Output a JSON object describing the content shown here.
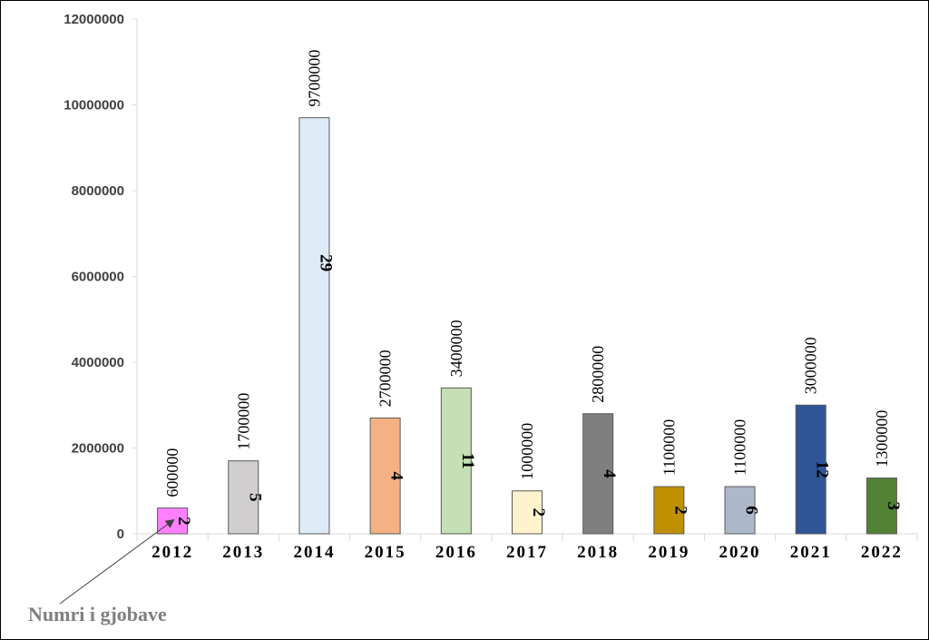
{
  "chart_data": {
    "type": "bar",
    "categories": [
      "2012",
      "2013",
      "2014",
      "2015",
      "2016",
      "2017",
      "2018",
      "2019",
      "2020",
      "2021",
      "2022"
    ],
    "values": [
      600000,
      1700000,
      9700000,
      2700000,
      3400000,
      1000000,
      2800000,
      1100000,
      1100000,
      3000000,
      1300000
    ],
    "counts": [
      2,
      5,
      29,
      4,
      11,
      2,
      4,
      2,
      6,
      12,
      3
    ],
    "colors": [
      "#ff80ff",
      "#d0cece",
      "#deebf7",
      "#f4b183",
      "#c5e0b4",
      "#fff2cc",
      "#7f7f7f",
      "#bf9000",
      "#adb9ca",
      "#2f5597",
      "#548235"
    ],
    "yticks": [
      "0",
      "2000000",
      "4000000",
      "6000000",
      "8000000",
      "10000000",
      "12000000"
    ],
    "ylim": [
      0,
      12000000
    ],
    "annotation": "Numri i gjobave",
    "title": "",
    "xlabel": "",
    "ylabel": "",
    "grid": false,
    "legend": "none"
  }
}
